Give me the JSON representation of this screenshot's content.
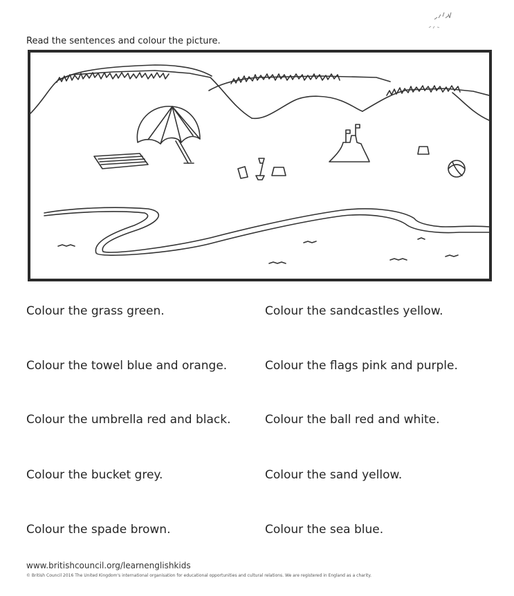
{
  "instruction": "Read the sentences and colour the picture.",
  "sentences_left": [
    "Colour the grass green.",
    "Colour the towel blue and orange.",
    "Colour the umbrella red and black.",
    "Colour the bucket grey.",
    "Colour the spade brown."
  ],
  "sentences_right": [
    "Colour the sandcastles yellow.",
    "Colour the flags pink and purple.",
    "Colour the ball red and white.",
    "Colour the sand yellow.",
    "Colour the sea blue."
  ],
  "footer": {
    "url": "www.britishcouncil.org/learnenglishkids",
    "copyright": "© British Council 2016 The United Kingdom's international organisation for educational opportunities and cultural relations. We are registered in England as a charity."
  },
  "picture": {
    "objects": [
      "grass",
      "umbrella",
      "towel",
      "sandcastle",
      "flags",
      "bucket",
      "spade",
      "ball",
      "sea"
    ]
  }
}
